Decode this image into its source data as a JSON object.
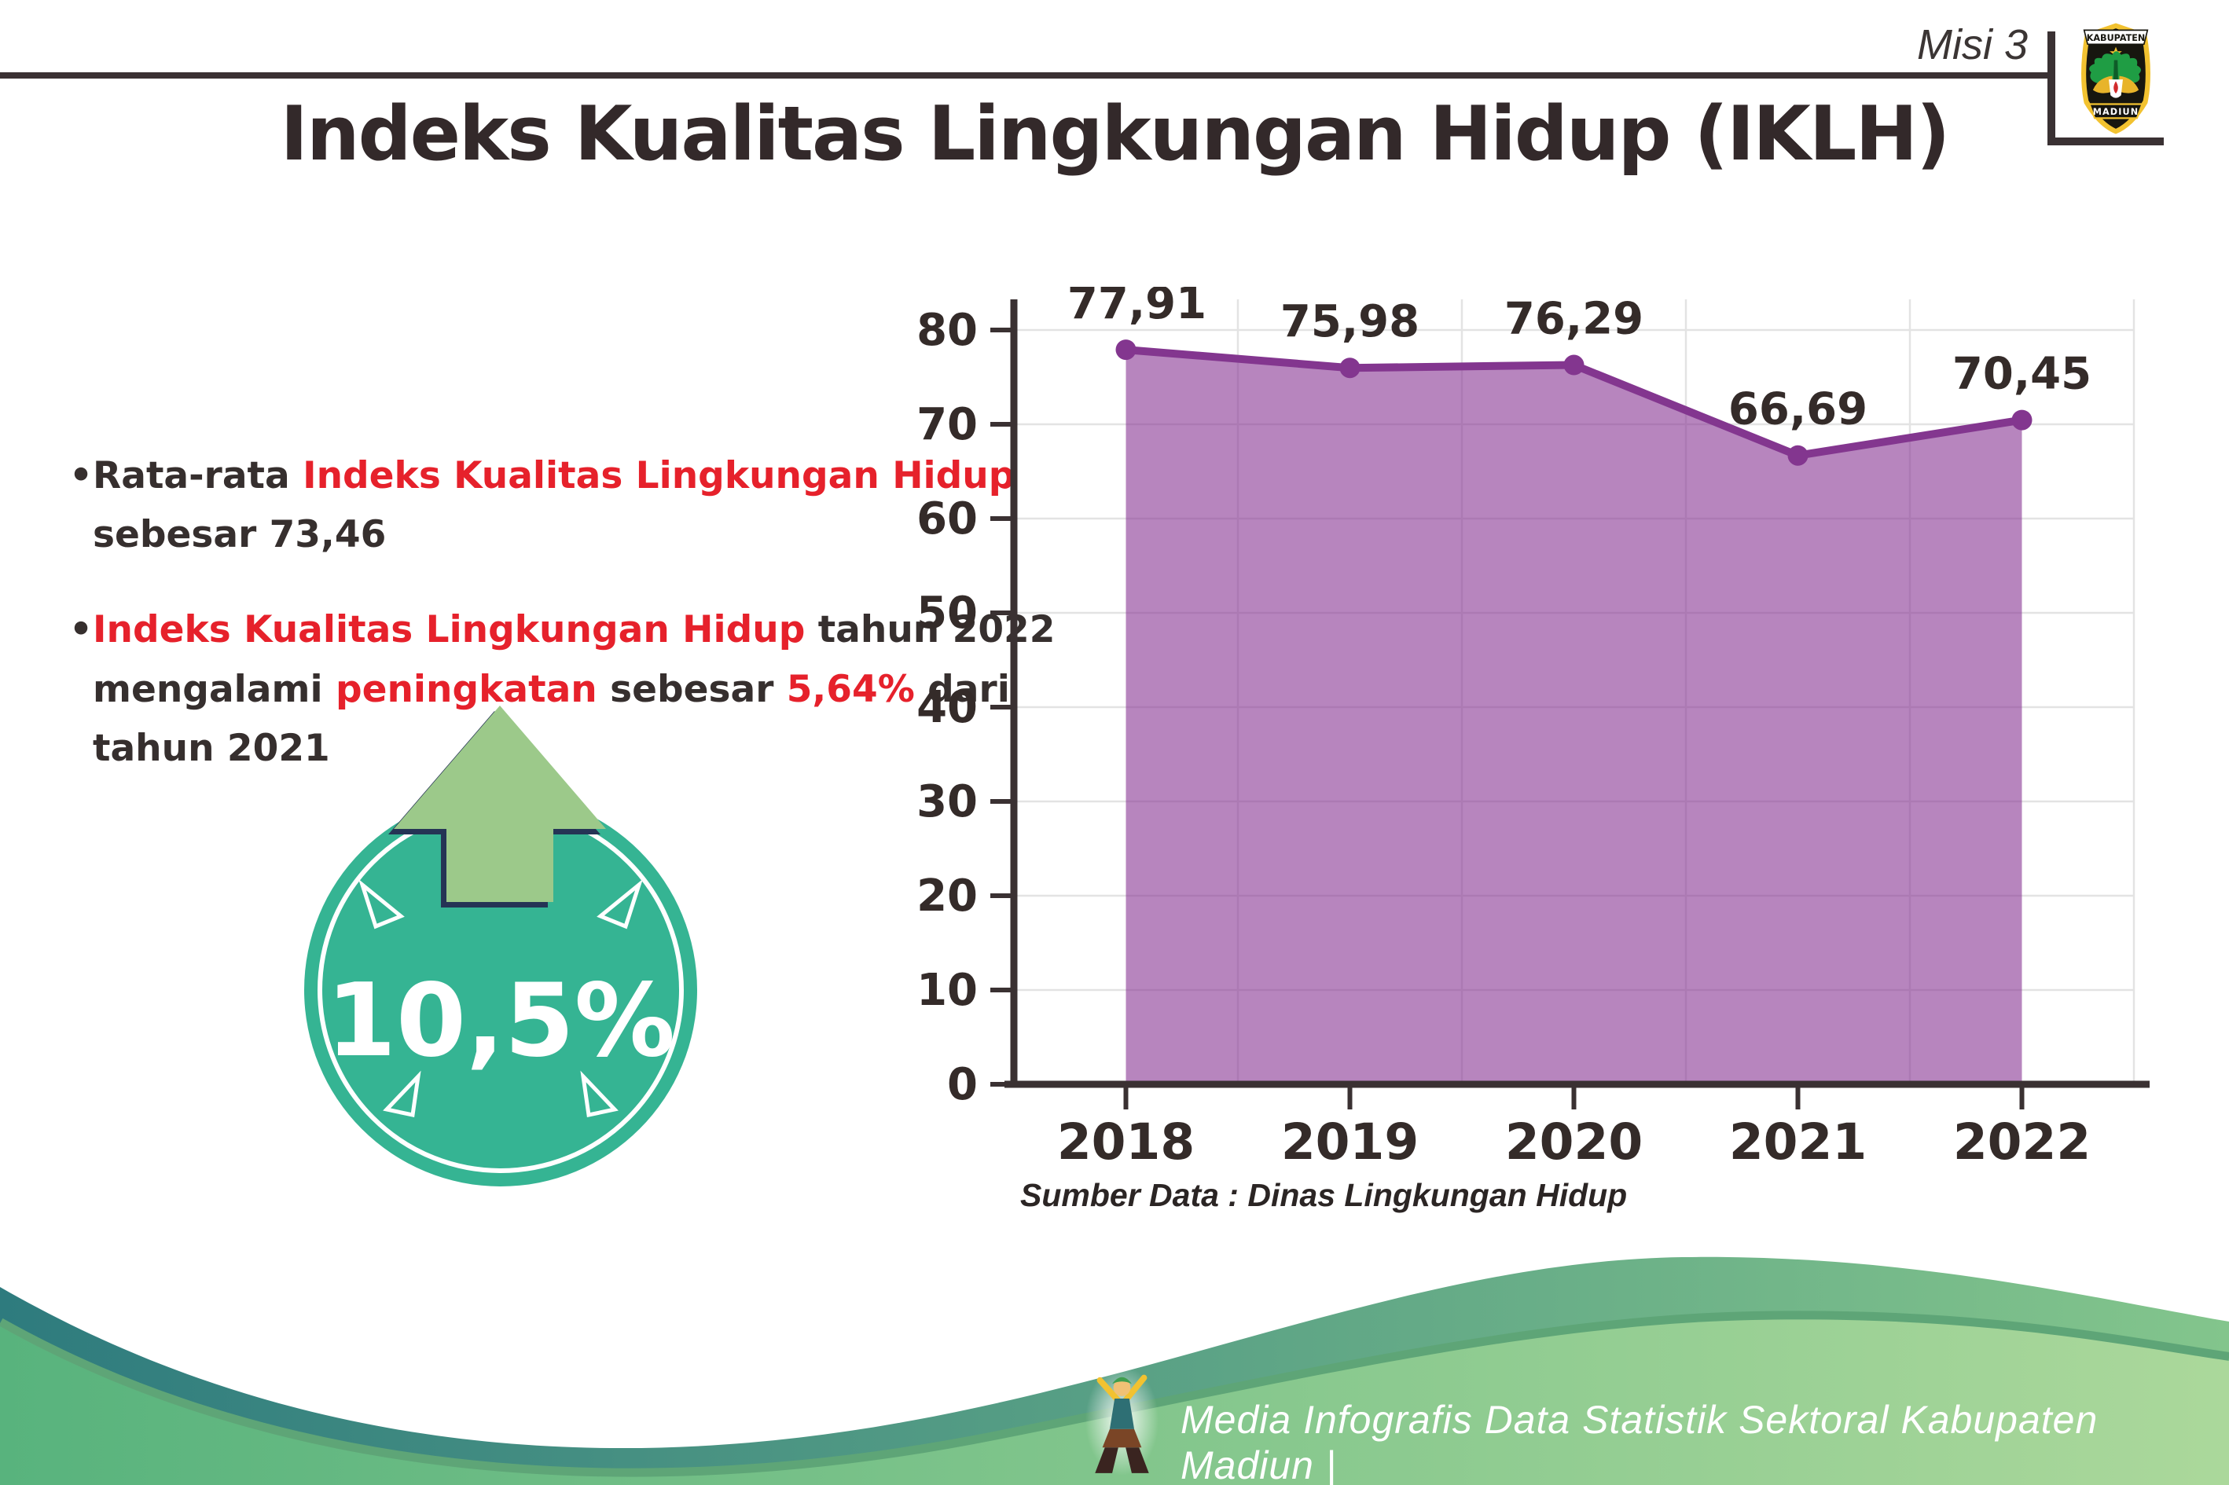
{
  "page": {
    "misi_label": "Misi 3",
    "title": "Indeks Kualitas Lingkungan Hidup (IKLH)"
  },
  "logo": {
    "name": "kabupaten-madiun-seal",
    "top_banner": "KABUPATEN",
    "bottom_banner": "MADIUN"
  },
  "bullets": [
    {
      "lines": [
        [
          {
            "t": "Rata-rata ",
            "c": "dark"
          },
          {
            "t": "Indeks Kualitas Lingkungan Hidup",
            "c": "red"
          }
        ],
        [
          {
            "t": "sebesar 73,46",
            "c": "dark"
          }
        ]
      ]
    },
    {
      "lines": [
        [
          {
            "t": "Indeks Kualitas Lingkungan Hidup",
            "c": "red"
          },
          {
            "t": " tahun 2022",
            "c": "dark"
          }
        ],
        [
          {
            "t": "mengalami ",
            "c": "dark"
          },
          {
            "t": "peningkatan",
            "c": "red"
          },
          {
            "t": " sebesar ",
            "c": "dark"
          },
          {
            "t": "5,64%",
            "c": "red"
          },
          {
            "t": " dari",
            "c": "dark"
          }
        ],
        [
          {
            "t": "tahun 2021",
            "c": "dark"
          }
        ]
      ]
    }
  ],
  "badge": {
    "value": "10,5%",
    "circle_color": "#35b493",
    "arrow_color": "#9cc98a",
    "arrow_outline_color": "#253455"
  },
  "chart_data": {
    "type": "area",
    "title": "",
    "xlabel": "",
    "ylabel": "",
    "categories": [
      "2018",
      "2019",
      "2020",
      "2021",
      "2022"
    ],
    "series": [
      {
        "name": "IKLH",
        "values": [
          77.91,
          75.98,
          76.29,
          66.69,
          70.45
        ]
      }
    ],
    "value_labels": [
      "77,91",
      "75,98",
      "76,29",
      "66,69",
      "70,45"
    ],
    "ylim": [
      0,
      80
    ],
    "ytick_step": 10,
    "grid": true,
    "legend": "none",
    "colors": {
      "line": "#83368f",
      "fill": "#8a3a96",
      "fill_opacity": 0.62,
      "axis": "#3a3132",
      "grid": "#e3e3e3",
      "tick_label": "#342b29",
      "data_label": "#342b29"
    }
  },
  "source_note": "Sumber Data : Dinas Lingkungan Hidup",
  "footer": {
    "text": "Media Infografis Data Statistik Sektoral Kabupaten Madiun |",
    "wave_teal": "#2e7b7e",
    "wave_green": "#83c58c",
    "wave_front_left": "#58b37d",
    "wave_front_right": "#abd89b"
  }
}
